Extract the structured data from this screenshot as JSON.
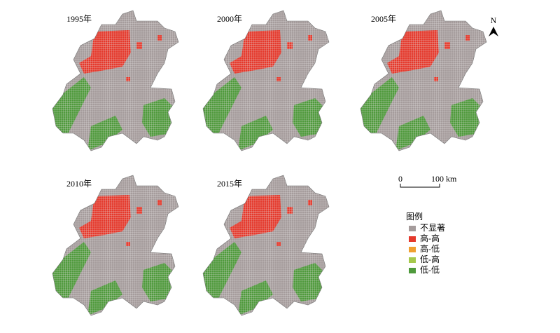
{
  "panels": [
    {
      "year": "1995年"
    },
    {
      "year": "2000年"
    },
    {
      "year": "2005年"
    },
    {
      "year": "2010年"
    },
    {
      "year": "2015年"
    }
  ],
  "north": "N",
  "scale": {
    "start": "0",
    "end": "100 km"
  },
  "legend": {
    "title": "图例",
    "items": [
      {
        "label": "不显著",
        "color": "#a59c9c"
      },
      {
        "label": "高-高",
        "color": "#e5392c"
      },
      {
        "label": "高-低",
        "color": "#f0a030"
      },
      {
        "label": "低-高",
        "color": "#a6c94c"
      },
      {
        "label": "低-低",
        "color": "#4f9a3c"
      }
    ]
  }
}
